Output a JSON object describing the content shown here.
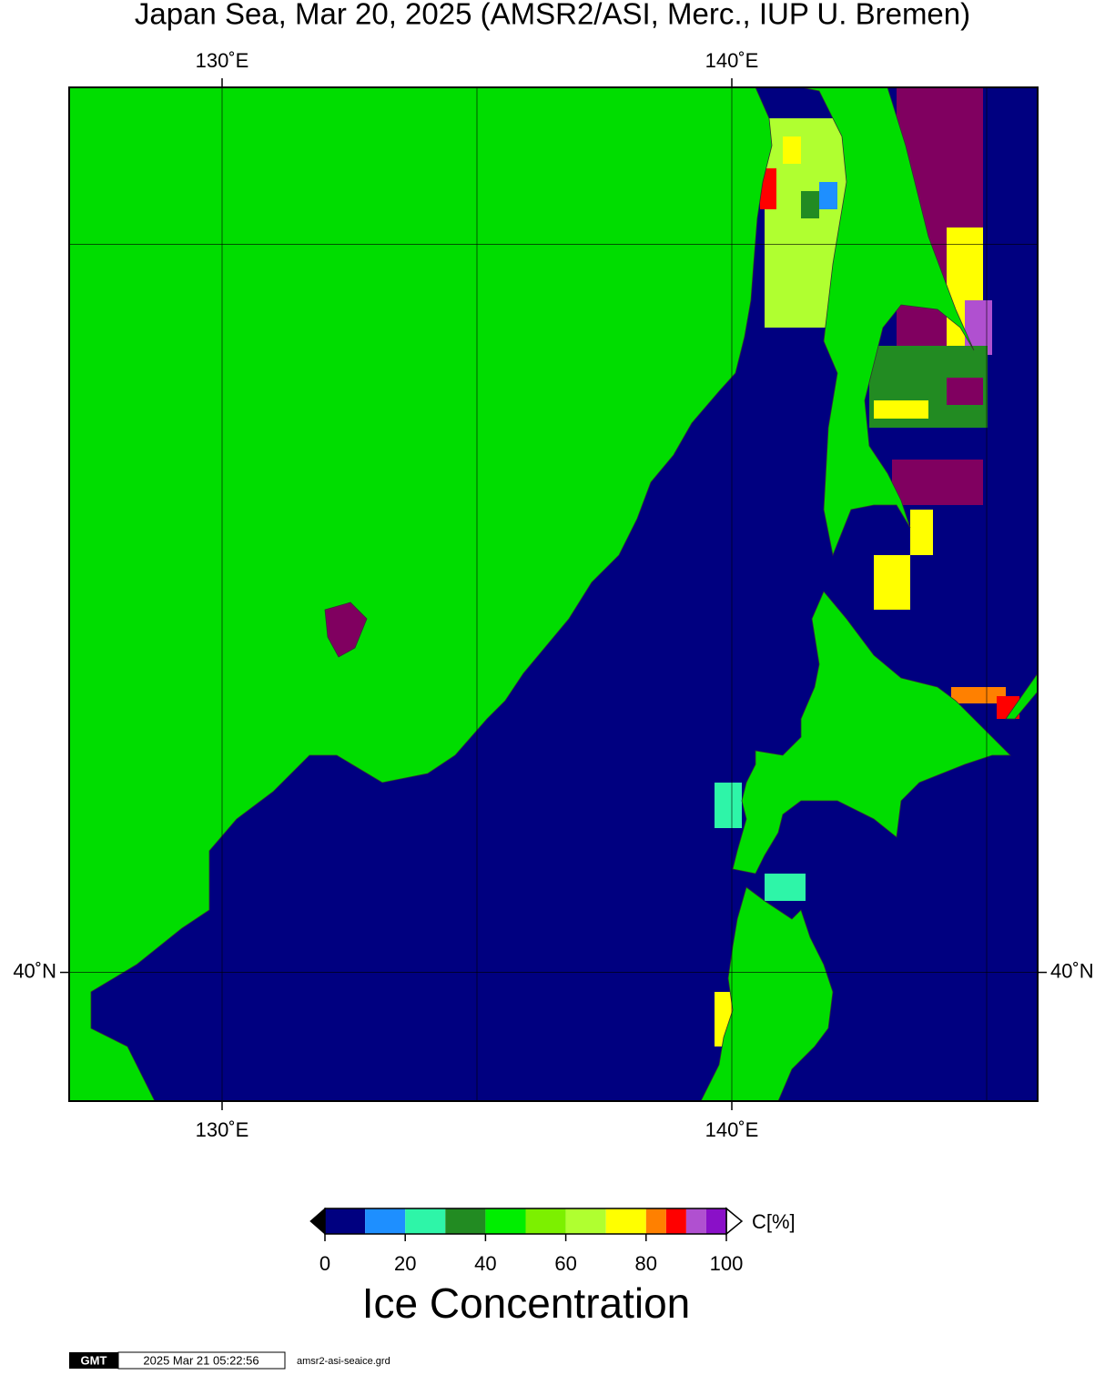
{
  "title": "Japan Sea, Mar 20, 2025 (AMSR2/ASI, Merc., IUP U. Bremen)",
  "map": {
    "lon_lim": [
      127,
      146
    ],
    "lat_lim": [
      38.05,
      51.93
    ],
    "lon_ticks": [
      {
        "value": 130,
        "label": "130˚E"
      },
      {
        "value": 140,
        "label": "140˚E"
      }
    ],
    "lat_ticks": [
      {
        "value": 40,
        "label": "40˚N"
      }
    ],
    "grid_lon": [
      135,
      145
    ],
    "grid_lat": [
      50
    ]
  },
  "colorbar": {
    "bounds": [
      0,
      10,
      20,
      30,
      40,
      50,
      60,
      70,
      80,
      85,
      90,
      95,
      100
    ],
    "colors": [
      "#000080",
      "#1e8fff",
      "#2ef5a8",
      "#228b22",
      "#00ee00",
      "#7cf000",
      "#b0ff30",
      "#ffff00",
      "#ff8000",
      "#ff0000",
      "#b050d0",
      "#8a10c8"
    ],
    "lim": [
      0,
      100
    ],
    "ticks": [
      0,
      20,
      40,
      60,
      80,
      100
    ],
    "unit": "C[%]",
    "title": "Ice Concentration"
  },
  "footer": {
    "logo": "GMT",
    "timestamp": "2025 Mar 21 05:22:56",
    "file": "amsr2-asi-seaice.grd"
  }
}
